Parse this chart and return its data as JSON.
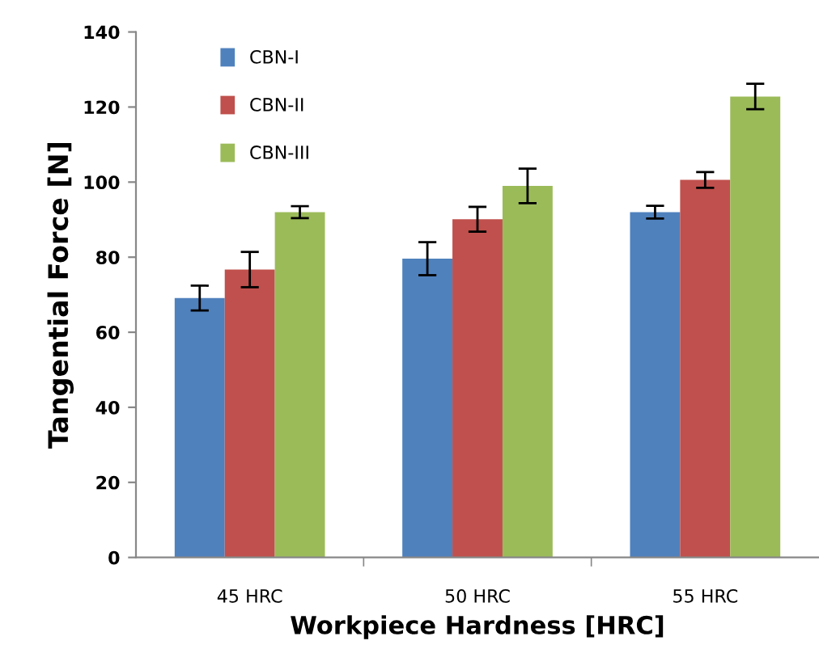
{
  "chart_data": {
    "type": "bar",
    "xlabel": "Workpiece Hardness [HRC]",
    "ylabel": "Tangential Force [N]",
    "categories": [
      "45 HRC",
      "50 HRC",
      "55 HRC"
    ],
    "series": [
      {
        "name": "CBN-I",
        "color": "#4f81bd",
        "values": [
          69.1,
          79.6,
          92
        ],
        "errors": [
          3.3,
          4.4,
          1.7
        ]
      },
      {
        "name": "CBN-II",
        "color": "#c0504d",
        "values": [
          76.7,
          90.1,
          100.6
        ],
        "errors": [
          4.7,
          3.3,
          2.1
        ]
      },
      {
        "name": "CBN-III",
        "color": "#9bbb59",
        "values": [
          92,
          99,
          122.8
        ],
        "errors": [
          1.6,
          4.6,
          3.4
        ]
      }
    ],
    "ylim": [
      0,
      140
    ],
    "yticks": [
      0,
      20,
      40,
      60,
      80,
      100,
      120,
      140
    ],
    "grid": false,
    "legend": "top left"
  }
}
